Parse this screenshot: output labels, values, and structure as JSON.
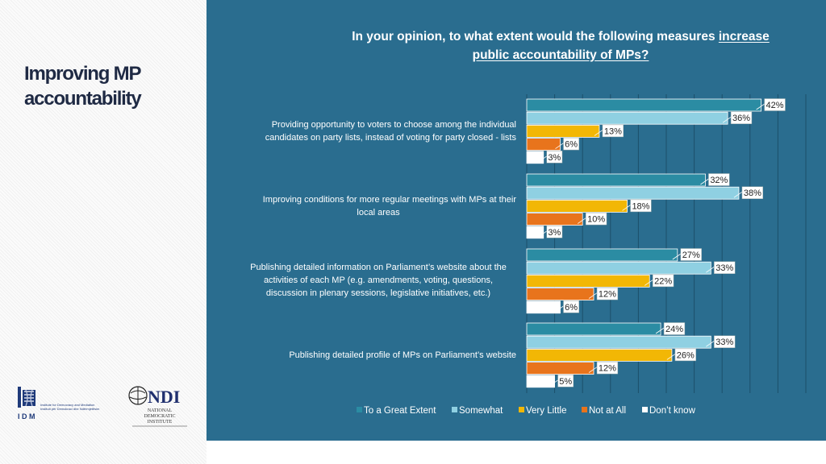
{
  "heading": [
    "Improving MP",
    "accountability"
  ],
  "question": {
    "prefix": "In your opinion, to what extent would the following measures ",
    "underlined_1": "increase",
    "underlined_2": "public accountability of MPs?"
  },
  "colors": {
    "panel": "#2a6d8f",
    "great": "#2b8ca3",
    "somewhat": "#8fd0e2",
    "little": "#f2b705",
    "notatall": "#e8741c",
    "dontknow": "#ffffff"
  },
  "logos": {
    "idm": {
      "letters": "I D M",
      "line1": "Institute for Democracy and Mediation",
      "line2": "Instituti për Demokraci dhe Ndërmjetësim"
    },
    "ndi": {
      "mark": "NDI",
      "line1": "NATIONAL",
      "line2": "DEMOCRATIC",
      "line3": "INSTITUTE"
    }
  },
  "chart_data": {
    "type": "bar",
    "orientation": "horizontal",
    "title": "In your opinion, to what extent would the following measures increase public accountability of MPs?",
    "xlim": [
      0,
      50
    ],
    "grid": true,
    "legend_position": "bottom",
    "categories": [
      [
        "Providing opportunity to voters to choose among the individual",
        "candidates on party lists, instead of voting for party closed - lists"
      ],
      [
        "Improving conditions for more regular meetings with MPs at their",
        "local areas"
      ],
      [
        "Publishing detailed information on Parliament’s website about the",
        "activities of each MP (e.g. amendments, voting, questions,",
        "discussion in plenary sessions, legislative initiatives, etc.)"
      ],
      [
        "Publishing detailed profile of MPs on Parliament’s website"
      ]
    ],
    "series": [
      {
        "name": "To a Great Extent",
        "color": "#2b8ca3",
        "values": [
          42,
          32,
          27,
          24
        ]
      },
      {
        "name": "Somewhat",
        "color": "#8fd0e2",
        "values": [
          36,
          38,
          33,
          33
        ]
      },
      {
        "name": "Very Little",
        "color": "#f2b705",
        "values": [
          13,
          18,
          22,
          26
        ]
      },
      {
        "name": "Not at All",
        "color": "#e8741c",
        "values": [
          6,
          10,
          12,
          12
        ]
      },
      {
        "name": "Don’t know",
        "color": "#ffffff",
        "values": [
          3,
          3,
          6,
          5
        ]
      }
    ]
  }
}
